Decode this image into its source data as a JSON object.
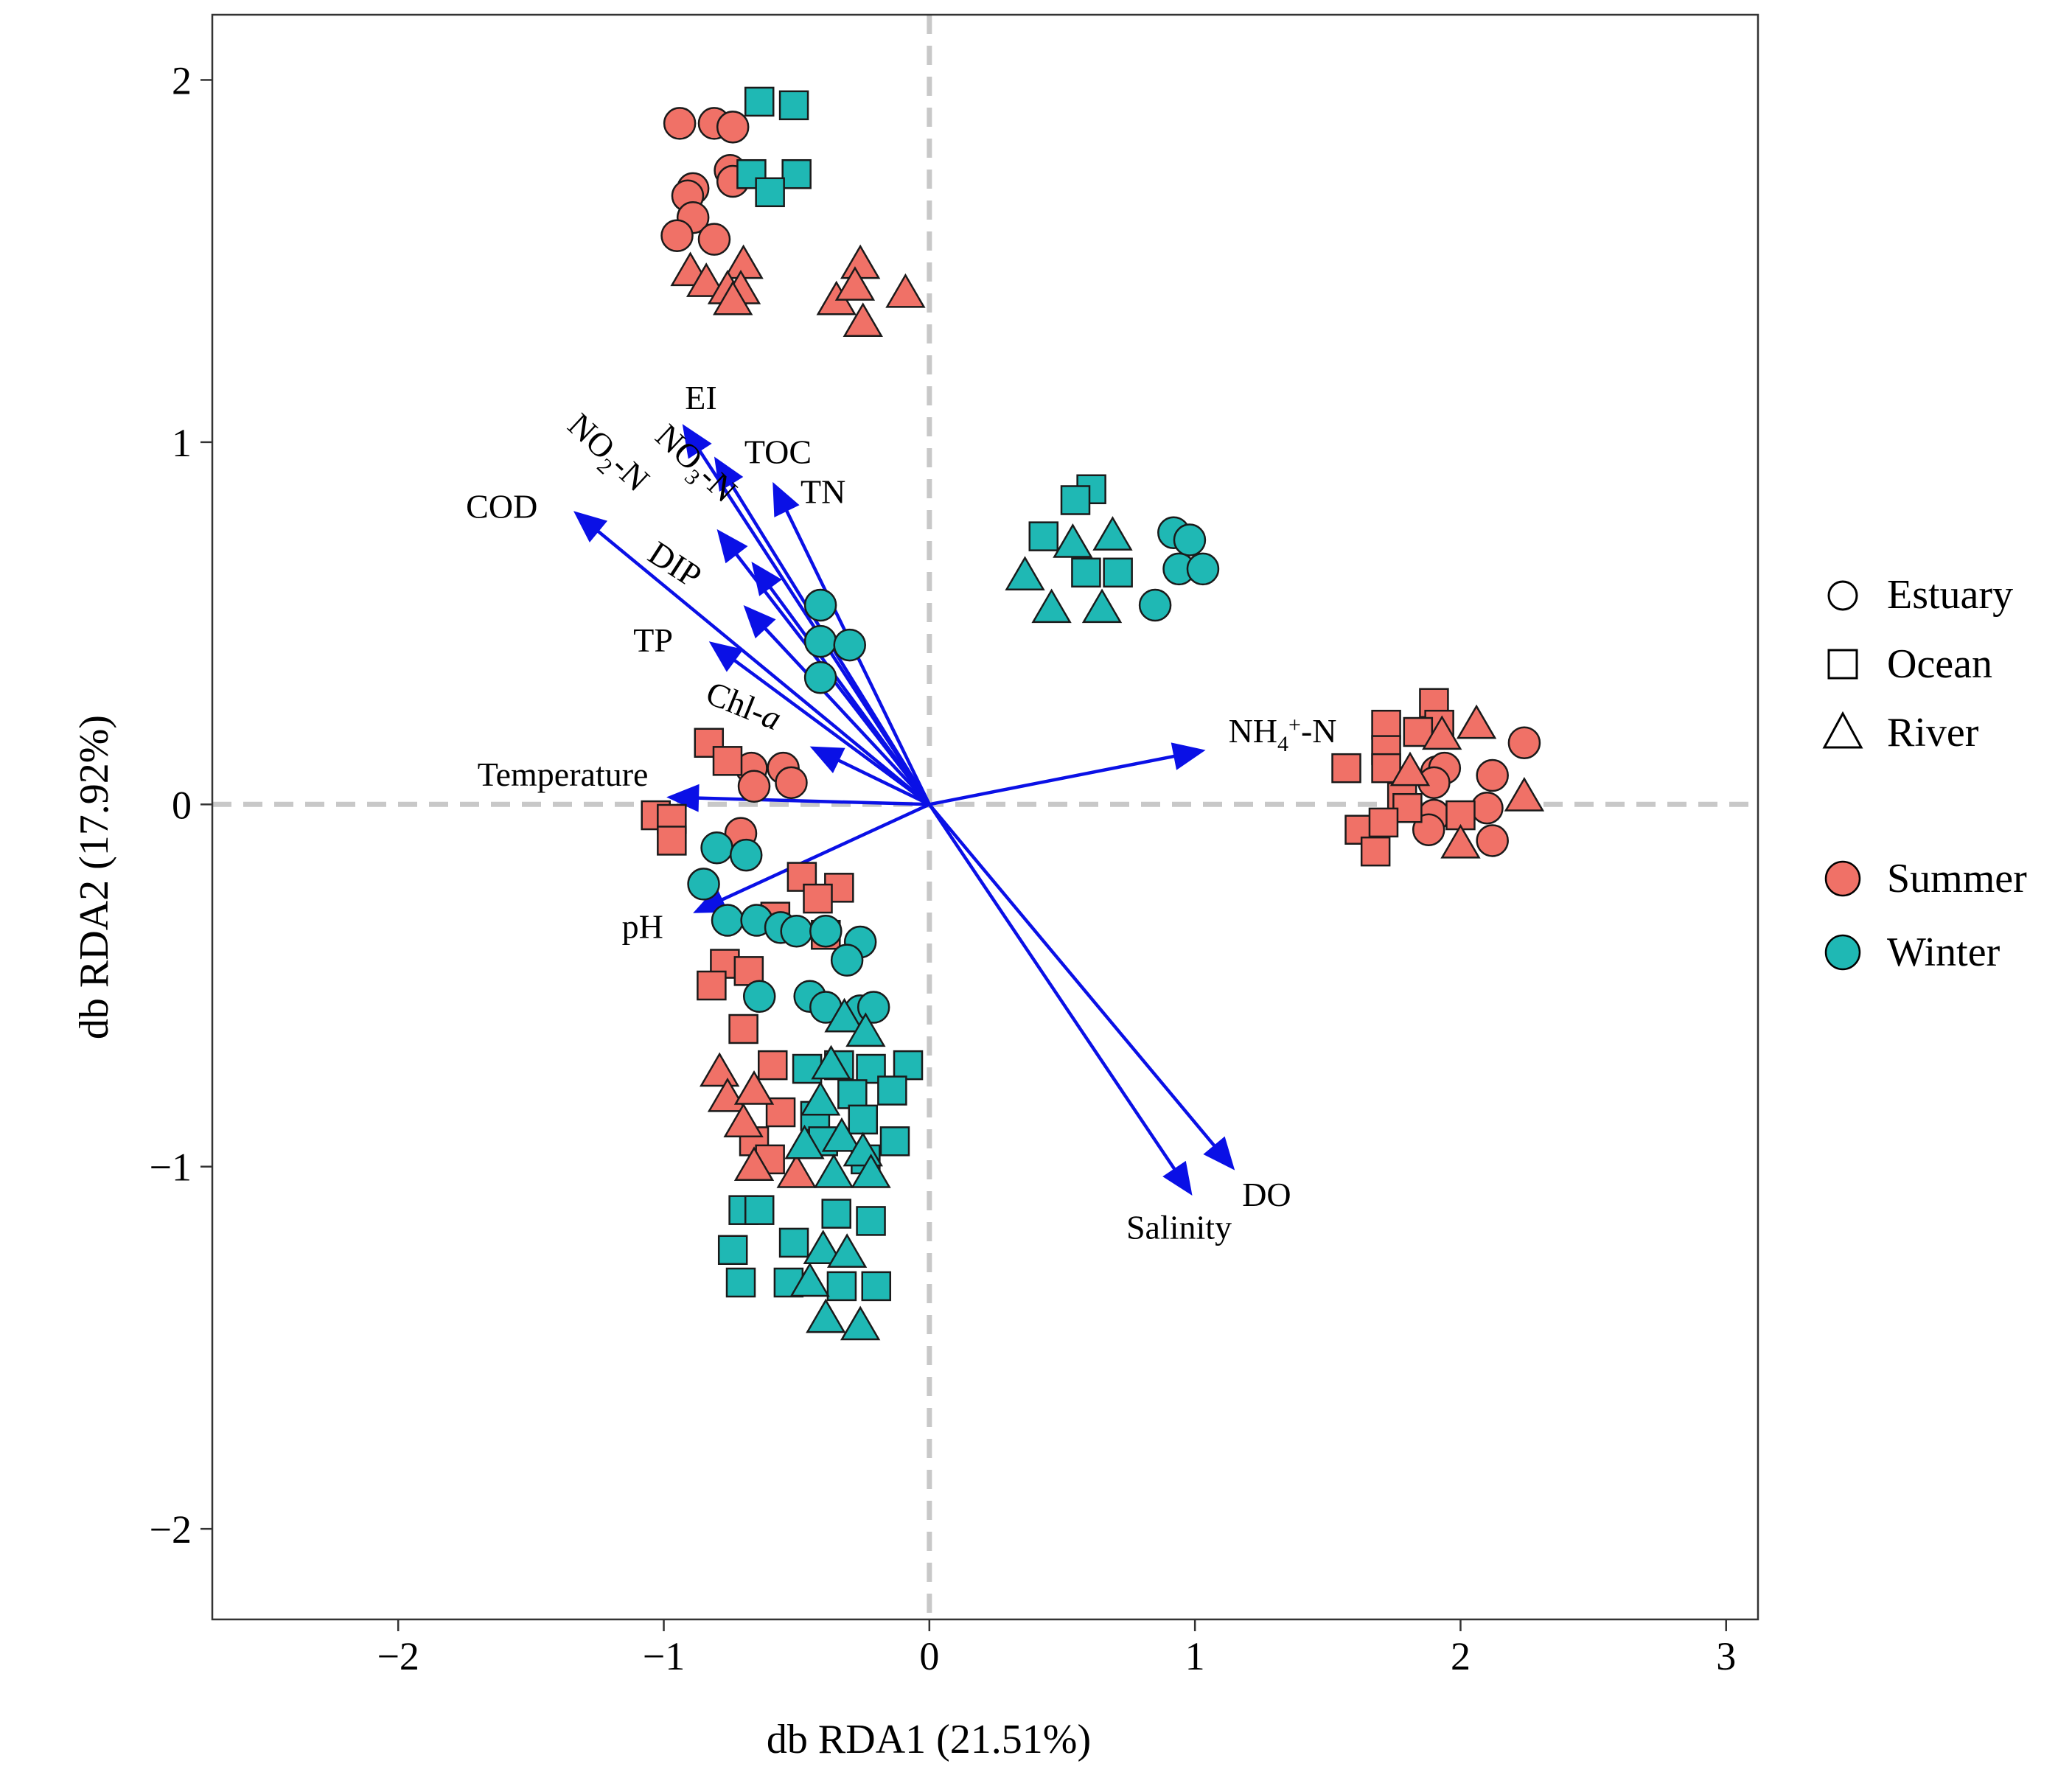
{
  "chart_data": {
    "type": "scatter",
    "subtype": "db-RDA biplot",
    "xlabel": "db RDA1 (21.51%)",
    "ylabel": "db RDA2 (17.92%)",
    "xlim": [
      -2.7,
      3.12
    ],
    "ylim": [
      -2.25,
      2.18
    ],
    "xticks": [
      -2,
      -1,
      0,
      1,
      2,
      3
    ],
    "yticks": [
      -2,
      -1,
      0,
      1,
      2
    ],
    "xtick_labels": [
      "−2",
      "−1",
      "0",
      "1",
      "2",
      "3"
    ],
    "ytick_labels": [
      "−2",
      "−1",
      "0",
      "1",
      "2"
    ],
    "reference_lines": {
      "x": 0,
      "y": 0,
      "style": "dashed",
      "color": "#c8c8c8"
    },
    "colors": {
      "Summer": "#f07167",
      "Winter": "#1fb8b4",
      "arrow": "#0a10e6",
      "axis": "#000000"
    },
    "legend": {
      "position": "right",
      "shape_entries": [
        {
          "label": "Estuary",
          "shape": "circle"
        },
        {
          "label": "Ocean",
          "shape": "square"
        },
        {
          "label": "River",
          "shape": "triangle"
        }
      ],
      "color_entries": [
        {
          "label": "Summer",
          "season": "Summer"
        },
        {
          "label": "Winter",
          "season": "Winter"
        }
      ]
    },
    "vectors": [
      {
        "name": "EI",
        "x": -0.93,
        "y": 1.05,
        "label": "EI",
        "label_x": -0.86,
        "label_y": 1.12
      },
      {
        "name": "TOC",
        "x": -0.81,
        "y": 0.96,
        "label": "TOC",
        "label_x": -0.57,
        "label_y": 0.97
      },
      {
        "name": "TN",
        "x": -0.59,
        "y": 0.89,
        "label": "TN",
        "label_x": -0.4,
        "label_y": 0.86
      },
      {
        "name": "NO3-N",
        "x": -0.8,
        "y": 0.76,
        "label": "NO3-N",
        "label_x": -0.88,
        "label_y": 0.94,
        "rotate": 43
      },
      {
        "name": "NO2-N",
        "x": -0.67,
        "y": 0.67,
        "label": "NO2-N",
        "label_x": -1.21,
        "label_y": 0.97,
        "rotate": 43
      },
      {
        "name": "DIP",
        "x": -0.7,
        "y": 0.55,
        "label": "DIP",
        "label_x": -0.96,
        "label_y": 0.66,
        "rotate": 33
      },
      {
        "name": "COD",
        "x": -1.34,
        "y": 0.81,
        "label": "COD",
        "label_x": -1.61,
        "label_y": 0.82
      },
      {
        "name": "TP",
        "x": -0.83,
        "y": 0.45,
        "label": "TP",
        "label_x": -1.04,
        "label_y": 0.45
      },
      {
        "name": "Chl-a",
        "x": -0.45,
        "y": 0.16,
        "label": "Chl-a",
        "label_x": -0.7,
        "label_y": 0.27,
        "rotate": 22
      },
      {
        "name": "Temperature",
        "x": -0.99,
        "y": 0.02,
        "label": "Temperature",
        "label_x": -1.38,
        "label_y": 0.08
      },
      {
        "name": "pH",
        "x": -0.89,
        "y": -0.3,
        "label": "pH",
        "label_x": -1.08,
        "label_y": -0.34
      },
      {
        "name": "NH4+-N",
        "x": 1.04,
        "y": 0.15,
        "label": "NH4+-N",
        "label_x": 1.33,
        "label_y": 0.2
      },
      {
        "name": "Salinity",
        "x": 0.99,
        "y": -1.08,
        "label": "Salinity",
        "label_x": 0.94,
        "label_y": -1.17
      },
      {
        "name": "DO",
        "x": 1.15,
        "y": -1.01,
        "label": "DO",
        "label_x": 1.27,
        "label_y": -1.08
      }
    ],
    "series": [
      {
        "name": "Summer Estuary",
        "season": "Summer",
        "habitat": "Estuary",
        "shape": "circle",
        "points": [
          [
            -0.94,
            1.88
          ],
          [
            -0.81,
            1.88
          ],
          [
            -0.74,
            1.87
          ],
          [
            -0.75,
            1.75
          ],
          [
            -0.74,
            1.72
          ],
          [
            -0.89,
            1.7
          ],
          [
            -0.91,
            1.68
          ],
          [
            -0.89,
            1.62
          ],
          [
            -0.95,
            1.57
          ],
          [
            -0.81,
            1.56
          ],
          [
            -0.71,
            -0.08
          ],
          [
            -0.67,
            0.1
          ],
          [
            -0.55,
            0.1
          ],
          [
            -0.66,
            0.05
          ],
          [
            -0.52,
            0.06
          ],
          [
            1.91,
            0.09
          ],
          [
            1.94,
            0.1
          ],
          [
            2.12,
            0.08
          ],
          [
            2.24,
            0.17
          ],
          [
            1.9,
            0.06
          ],
          [
            1.9,
            -0.03
          ],
          [
            1.88,
            -0.07
          ],
          [
            2.1,
            -0.01
          ],
          [
            2.12,
            -0.1
          ]
        ]
      },
      {
        "name": "Summer Ocean",
        "season": "Summer",
        "habitat": "Ocean",
        "shape": "square",
        "points": [
          [
            -0.83,
            0.17
          ],
          [
            -0.76,
            0.12
          ],
          [
            -1.03,
            -0.03
          ],
          [
            -0.97,
            -0.04
          ],
          [
            -0.97,
            -0.1
          ],
          [
            -0.48,
            -0.2
          ],
          [
            -0.34,
            -0.23
          ],
          [
            -0.42,
            -0.26
          ],
          [
            -0.58,
            -0.31
          ],
          [
            -0.39,
            -0.36
          ],
          [
            -0.77,
            -0.44
          ],
          [
            -0.68,
            -0.46
          ],
          [
            -0.82,
            -0.5
          ],
          [
            -0.7,
            -0.62
          ],
          [
            -0.59,
            -0.72
          ],
          [
            -0.56,
            -0.85
          ],
          [
            -0.66,
            -0.93
          ],
          [
            -0.6,
            -0.98
          ],
          [
            1.57,
            0.1
          ],
          [
            1.72,
            0.22
          ],
          [
            1.72,
            0.15
          ],
          [
            1.72,
            0.1
          ],
          [
            1.78,
            0.02
          ],
          [
            1.9,
            0.28
          ],
          [
            1.92,
            0.22
          ],
          [
            1.84,
            0.2
          ],
          [
            1.8,
            -0.01
          ],
          [
            1.62,
            -0.07
          ],
          [
            1.71,
            -0.05
          ],
          [
            1.68,
            -0.13
          ],
          [
            2.0,
            -0.03
          ]
        ]
      },
      {
        "name": "Summer River",
        "season": "Summer",
        "habitat": "River",
        "shape": "triangle",
        "points": [
          [
            -0.9,
            1.47
          ],
          [
            -0.84,
            1.44
          ],
          [
            -0.7,
            1.49
          ],
          [
            -0.76,
            1.42
          ],
          [
            -0.71,
            1.42
          ],
          [
            -0.74,
            1.39
          ],
          [
            -0.35,
            1.39
          ],
          [
            -0.26,
            1.49
          ],
          [
            -0.28,
            1.43
          ],
          [
            -0.25,
            1.33
          ],
          [
            -0.09,
            1.41
          ],
          [
            -0.79,
            -0.74
          ],
          [
            -0.76,
            -0.81
          ],
          [
            -0.66,
            -0.79
          ],
          [
            -0.7,
            -0.88
          ],
          [
            -0.66,
            -1.0
          ],
          [
            -0.5,
            -1.02
          ],
          [
            1.81,
            0.09
          ],
          [
            1.93,
            0.19
          ],
          [
            2.06,
            0.22
          ],
          [
            2.24,
            0.02
          ],
          [
            2.0,
            -0.11
          ]
        ]
      },
      {
        "name": "Winter Estuary",
        "season": "Winter",
        "habitat": "Estuary",
        "shape": "circle",
        "points": [
          [
            -0.41,
            0.55
          ],
          [
            -0.41,
            0.45
          ],
          [
            -0.3,
            0.44
          ],
          [
            -0.41,
            0.35
          ],
          [
            0.92,
            0.75
          ],
          [
            0.98,
            0.73
          ],
          [
            0.94,
            0.65
          ],
          [
            1.03,
            0.65
          ],
          [
            0.85,
            0.55
          ],
          [
            -0.8,
            -0.12
          ],
          [
            -0.69,
            -0.14
          ],
          [
            -0.85,
            -0.22
          ],
          [
            -0.76,
            -0.32
          ],
          [
            -0.65,
            -0.32
          ],
          [
            -0.56,
            -0.34
          ],
          [
            -0.5,
            -0.35
          ],
          [
            -0.39,
            -0.35
          ],
          [
            -0.26,
            -0.38
          ],
          [
            -0.31,
            -0.43
          ],
          [
            -0.45,
            -0.53
          ],
          [
            -0.39,
            -0.56
          ],
          [
            -0.64,
            -0.53
          ],
          [
            -0.26,
            -0.57
          ],
          [
            -0.21,
            -0.56
          ]
        ]
      },
      {
        "name": "Winter Ocean",
        "season": "Winter",
        "habitat": "Ocean",
        "shape": "square",
        "points": [
          [
            -0.64,
            1.94
          ],
          [
            -0.51,
            1.93
          ],
          [
            -0.67,
            1.74
          ],
          [
            -0.5,
            1.74
          ],
          [
            -0.6,
            1.69
          ],
          [
            0.61,
            0.87
          ],
          [
            0.55,
            0.84
          ],
          [
            0.43,
            0.74
          ],
          [
            0.59,
            0.64
          ],
          [
            0.71,
            0.64
          ],
          [
            -0.46,
            -0.73
          ],
          [
            -0.34,
            -0.72
          ],
          [
            -0.22,
            -0.73
          ],
          [
            -0.08,
            -0.72
          ],
          [
            -0.14,
            -0.79
          ],
          [
            -0.29,
            -0.8
          ],
          [
            -0.43,
            -0.86
          ],
          [
            -0.25,
            -0.87
          ],
          [
            -0.13,
            -0.93
          ],
          [
            -0.4,
            -0.93
          ],
          [
            -0.24,
            -0.98
          ],
          [
            -0.7,
            -1.12
          ],
          [
            -0.64,
            -1.12
          ],
          [
            -0.35,
            -1.13
          ],
          [
            -0.22,
            -1.15
          ],
          [
            -0.74,
            -1.23
          ],
          [
            -0.51,
            -1.21
          ],
          [
            -0.71,
            -1.32
          ],
          [
            -0.53,
            -1.32
          ],
          [
            -0.33,
            -1.33
          ],
          [
            -0.2,
            -1.33
          ]
        ]
      },
      {
        "name": "Winter River",
        "season": "Winter",
        "habitat": "River",
        "shape": "triangle",
        "points": [
          [
            0.36,
            0.63
          ],
          [
            0.54,
            0.72
          ],
          [
            0.69,
            0.74
          ],
          [
            0.46,
            0.54
          ],
          [
            0.65,
            0.54
          ],
          [
            -0.32,
            -0.59
          ],
          [
            -0.24,
            -0.63
          ],
          [
            -0.37,
            -0.72
          ],
          [
            -0.41,
            -0.82
          ],
          [
            -0.47,
            -0.94
          ],
          [
            -0.33,
            -0.92
          ],
          [
            -0.25,
            -0.96
          ],
          [
            -0.36,
            -1.02
          ],
          [
            -0.22,
            -1.02
          ],
          [
            -0.4,
            -1.23
          ],
          [
            -0.31,
            -1.24
          ],
          [
            -0.45,
            -1.32
          ],
          [
            -0.39,
            -1.42
          ],
          [
            -0.26,
            -1.44
          ]
        ]
      }
    ]
  },
  "legend_title_text": {
    "estuary": "Estuary",
    "ocean": "Ocean",
    "river": "River",
    "summer": "Summer",
    "winter": "Winter"
  }
}
